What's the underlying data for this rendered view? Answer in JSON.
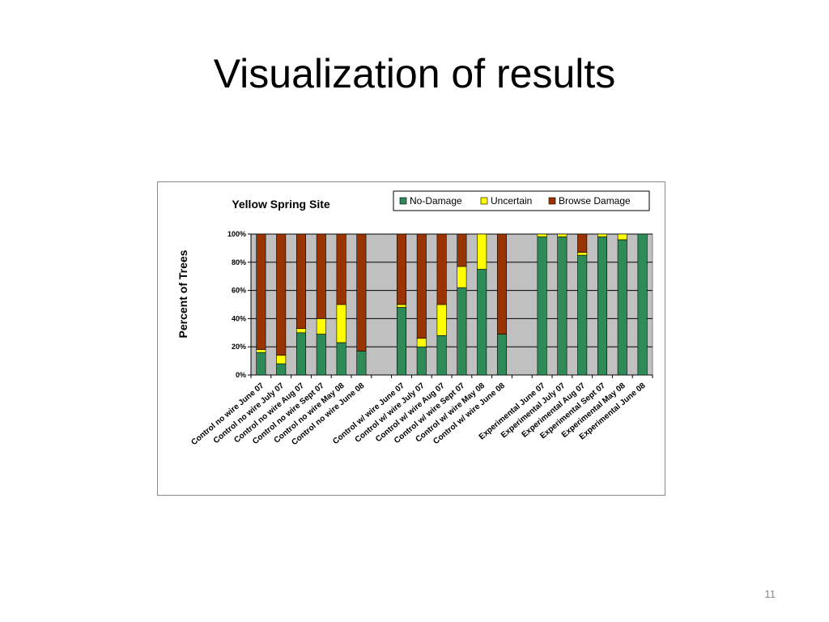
{
  "slide": {
    "title": "Visualization of results",
    "page_number": "11"
  },
  "chart_data": {
    "type": "bar",
    "stacked": true,
    "title": "Yellow Spring Site",
    "ylabel": "Percent of Trees",
    "xlabel": "",
    "ylim": [
      0,
      100
    ],
    "yticks": [
      0,
      20,
      40,
      60,
      80,
      100
    ],
    "ytick_labels": [
      "0%",
      "20%",
      "40%",
      "60%",
      "80%",
      "100%"
    ],
    "grid": true,
    "legend_position": "top-right",
    "categories": [
      "Control no wire June 07",
      "Control no wire July 07",
      "Control no wire Aug 07",
      "Control no wire Sept 07",
      "Control no wire May 08",
      "Control no wire June 08",
      "",
      "Control w/ wire June 07",
      "Control w/ wire July 07",
      "Control w/ wire Aug 07",
      "Control w/ wire Sept 07",
      "Control w/ wire May 08",
      "Control w/ wire June 08",
      "",
      "Experimental June 07",
      "Experimental July 07",
      "Experimental Aug 07",
      "Experimental Sept 07",
      "Experimental May 08",
      "Experimental June 08"
    ],
    "series": [
      {
        "name": "No-Damage",
        "color": "#2e8b57",
        "values": [
          16,
          8,
          30,
          29,
          23,
          17,
          0,
          48,
          20,
          28,
          62,
          75,
          29,
          0,
          98,
          98,
          85,
          98,
          96,
          100
        ]
      },
      {
        "name": "Uncertain",
        "color": "#ffff00",
        "values": [
          2,
          6,
          3,
          11,
          27,
          0,
          0,
          2,
          6,
          22,
          15,
          25,
          0,
          0,
          2,
          2,
          2,
          2,
          4,
          0
        ]
      },
      {
        "name": "Browse Damage",
        "color": "#993300",
        "values": [
          82,
          86,
          67,
          60,
          50,
          83,
          0,
          50,
          74,
          50,
          23,
          0,
          71,
          0,
          0,
          0,
          13,
          0,
          0,
          0
        ]
      }
    ]
  }
}
